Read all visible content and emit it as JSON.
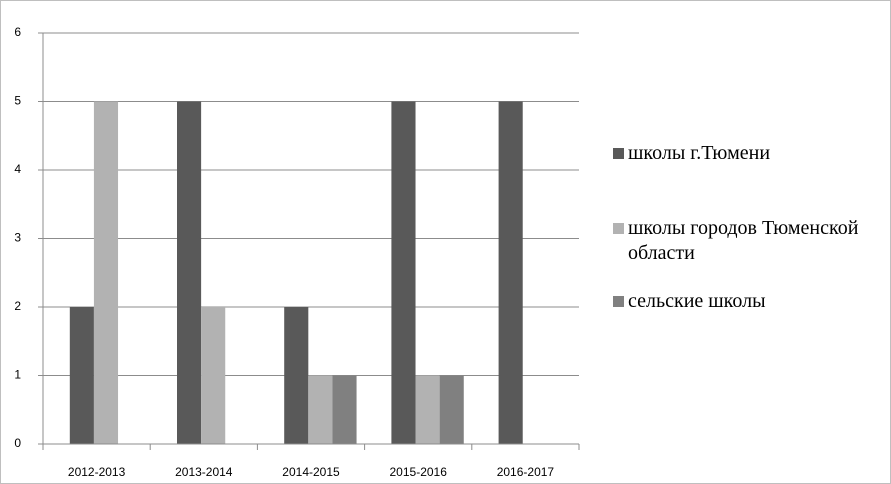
{
  "chart_data": {
    "type": "bar",
    "categories": [
      "2012-2013",
      "2013-2014",
      "2014-2015",
      "2015-2016",
      "2016-2017"
    ],
    "series": [
      {
        "name": "школы г.Тюмени",
        "color": "#595959",
        "values": [
          2,
          5,
          2,
          5,
          5
        ]
      },
      {
        "name": "школы городов Тюменской области",
        "color": "#b2b2b2",
        "values": [
          5,
          2,
          1,
          1,
          0
        ]
      },
      {
        "name": "сельские школы",
        "color": "#808080",
        "values": [
          0,
          0,
          1,
          1,
          0
        ]
      }
    ],
    "ylim": [
      0,
      6
    ],
    "yticks": [
      0,
      1,
      2,
      3,
      4,
      5,
      6
    ],
    "grid": true,
    "legend": "right"
  }
}
